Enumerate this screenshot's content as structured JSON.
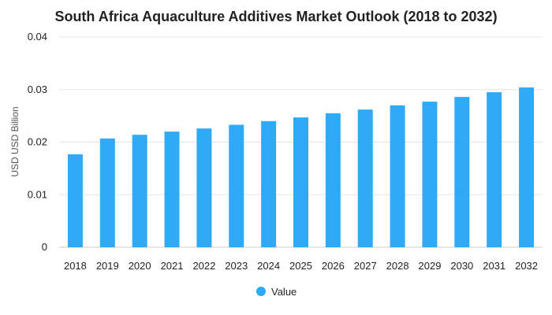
{
  "chart_data": {
    "type": "bar",
    "title": "South Africa Aquaculture Additives Market Outlook (2018 to 2032)",
    "xlabel": "",
    "ylabel": "USD USD Billion",
    "categories": [
      "2018",
      "2019",
      "2020",
      "2021",
      "2022",
      "2023",
      "2024",
      "2025",
      "2026",
      "2027",
      "2028",
      "2029",
      "2030",
      "2031",
      "2032"
    ],
    "series": [
      {
        "name": "Value",
        "values": [
          0.0177,
          0.0207,
          0.0214,
          0.022,
          0.0226,
          0.0233,
          0.024,
          0.0247,
          0.0255,
          0.0262,
          0.027,
          0.0277,
          0.0286,
          0.0295,
          0.0304
        ],
        "color": "#2eaaf6"
      }
    ],
    "ylim": [
      0,
      0.04
    ],
    "yticks": [
      "0",
      "0.01",
      "0.02",
      "0.03",
      "0.04"
    ],
    "grid": true,
    "legend": "bottom-center"
  }
}
